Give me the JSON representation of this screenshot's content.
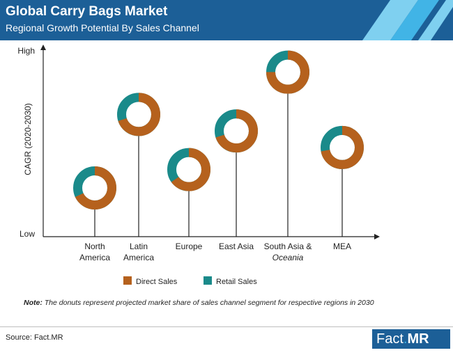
{
  "header": {
    "title": "Global Carry Bags Market",
    "subtitle": "Regional Growth Potential By Sales Channel"
  },
  "colors": {
    "header_bg": "#1c5f97",
    "header_stripe_light": "#7fd0f0",
    "header_stripe_mid": "#41b4e6",
    "direct": "#b5611d",
    "retail": "#1a8a8a"
  },
  "chart_data": {
    "type": "donut-lollipop",
    "ylabel": "CAGR (2020-2030)",
    "y_ticks": [
      "High",
      "Low"
    ],
    "ylim": [
      0,
      1
    ],
    "regions": [
      "North America",
      "Latin America",
      "Europe",
      "East Asia",
      "South Asia & Oceania",
      "MEA"
    ],
    "region_labels": [
      [
        "North",
        "America"
      ],
      [
        "Latin",
        "America"
      ],
      [
        "Europe"
      ],
      [
        "East Asia"
      ],
      [
        "South Asia &",
        "Oceania"
      ],
      [
        "MEA"
      ]
    ],
    "cagr_relative": [
      0.25,
      0.65,
      0.35,
      0.56,
      0.88,
      0.47
    ],
    "series": [
      {
        "name": "Direct Sales",
        "values": [
          0.68,
          0.7,
          0.65,
          0.7,
          0.75,
          0.72
        ]
      },
      {
        "name": "Retail Sales",
        "values": [
          0.32,
          0.3,
          0.35,
          0.3,
          0.25,
          0.28
        ]
      }
    ],
    "legend": [
      "Direct Sales",
      "Retail Sales"
    ],
    "legend_position": "bottom"
  },
  "note": {
    "label": "Note:",
    "text": " The donuts represent projected market share of sales channel segment for respective regions in 2030"
  },
  "source": "Source: Fact.MR",
  "logo": {
    "part1": "Fact",
    "dot": ".",
    "part2": "MR"
  }
}
